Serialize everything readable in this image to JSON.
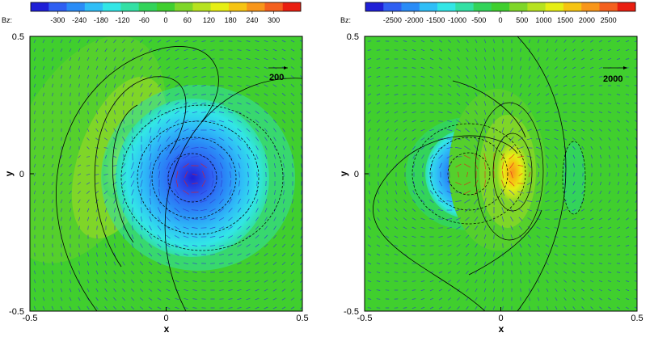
{
  "chart_data": [
    {
      "type": "contour",
      "colorbar": {
        "label": "Bz:",
        "levels": [
          -300,
          -240,
          -180,
          -120,
          -60,
          0,
          60,
          120,
          180,
          240,
          300
        ],
        "tick_labels": [
          "-300",
          "-240",
          "-180",
          "-120",
          "-60",
          "0",
          "60",
          "120",
          "180",
          "240",
          "300"
        ],
        "colors": [
          "#1f1fd6",
          "#2f5ff2",
          "#2a8cf7",
          "#2fbef7",
          "#32e6e6",
          "#32e0a4",
          "#33d45a",
          "#40cf2e",
          "#7fd628",
          "#b7e21f",
          "#e6ee14",
          "#f6c412",
          "#f8961a",
          "#f4601e",
          "#e91e10"
        ]
      },
      "xlabel": "x",
      "ylabel": "y",
      "xlim": [
        -0.5,
        0.5
      ],
      "ylim": [
        -0.5,
        0.5
      ],
      "x_ticks": [
        "-0.5",
        "0",
        "0.5"
      ],
      "y_ticks": [
        "-0.5",
        "0",
        "0.5"
      ],
      "vector_reference": "200",
      "features": [
        {
          "kind": "negative_core",
          "x": 0.09,
          "y": -0.01,
          "value": -300
        },
        {
          "kind": "positive_lobe",
          "x": -0.15,
          "y": 0.05,
          "value": 140
        }
      ]
    },
    {
      "type": "contour",
      "colorbar": {
        "label": "Bz:",
        "levels": [
          -2500,
          -2000,
          -1500,
          -1000,
          -500,
          0,
          500,
          1000,
          1500,
          2000,
          2500
        ],
        "tick_labels": [
          "-2500",
          "-2000",
          "-1500",
          "-1000",
          "-500",
          "0",
          "500",
          "1000",
          "1500",
          "2000",
          "2500"
        ],
        "colors": [
          "#1f1fd6",
          "#2f5ff2",
          "#2a8cf7",
          "#2fbef7",
          "#32e6e6",
          "#32e0a4",
          "#33d45a",
          "#40cf2e",
          "#7fd628",
          "#b7e21f",
          "#e6ee14",
          "#f6c412",
          "#f8961a",
          "#f4601e",
          "#e91e10"
        ]
      },
      "xlabel": "x",
      "ylabel": "y",
      "xlim": [
        -0.5,
        0.5
      ],
      "ylim": [
        -0.5,
        0.5
      ],
      "x_ticks": [
        "-0.5",
        "0",
        "0.5"
      ],
      "y_ticks": [
        "-0.5",
        "0",
        "0.5"
      ],
      "vector_reference": "2000",
      "features": [
        {
          "kind": "negative_core",
          "x": -0.12,
          "y": -0.01,
          "value": -2200
        },
        {
          "kind": "positive_core",
          "x": 0.05,
          "y": 0.0,
          "value": 1800
        },
        {
          "kind": "positive_band",
          "x": 0.24,
          "y": -0.02,
          "value": 300
        }
      ]
    }
  ]
}
